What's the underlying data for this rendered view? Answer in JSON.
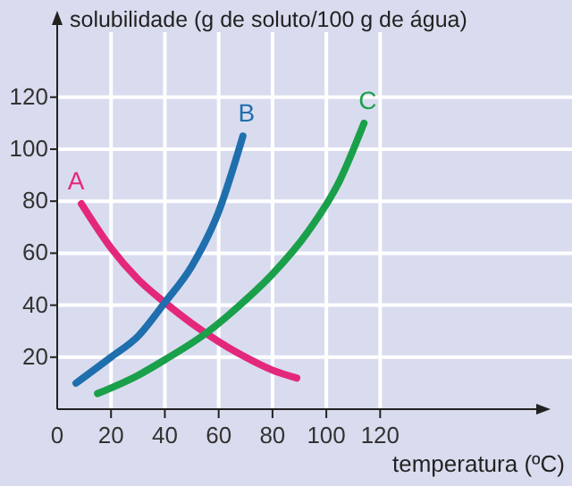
{
  "chart_data": {
    "type": "line",
    "xlabel": "temperatura (ºC)",
    "ylabel": "solubilidade (g de soluto/100 g de água)",
    "xlim": [
      0,
      178
    ],
    "ylim": [
      0,
      145
    ],
    "xticks": [
      0,
      20,
      40,
      60,
      80,
      100,
      120
    ],
    "yticks": [
      20,
      40,
      60,
      80,
      100,
      120
    ],
    "grid": true,
    "marker": "none",
    "line_style": "solid",
    "series": [
      {
        "name": "A",
        "color": "#e3287c",
        "x": [
          9,
          20,
          30,
          40,
          50,
          60,
          70,
          80,
          89
        ],
        "values": [
          79,
          62,
          50,
          41,
          33,
          26,
          20,
          15,
          12
        ]
      },
      {
        "name": "B",
        "color": "#1f6fae",
        "x": [
          7,
          20,
          30,
          40,
          50,
          60,
          69
        ],
        "values": [
          10,
          20,
          28,
          41,
          55,
          76,
          105
        ]
      },
      {
        "name": "C",
        "color": "#1aa04a",
        "x": [
          15,
          30,
          40,
          55,
          70,
          80,
          93,
          105,
          114
        ],
        "values": [
          6,
          13,
          19,
          29,
          42,
          52,
          68,
          88,
          110
        ]
      }
    ]
  }
}
